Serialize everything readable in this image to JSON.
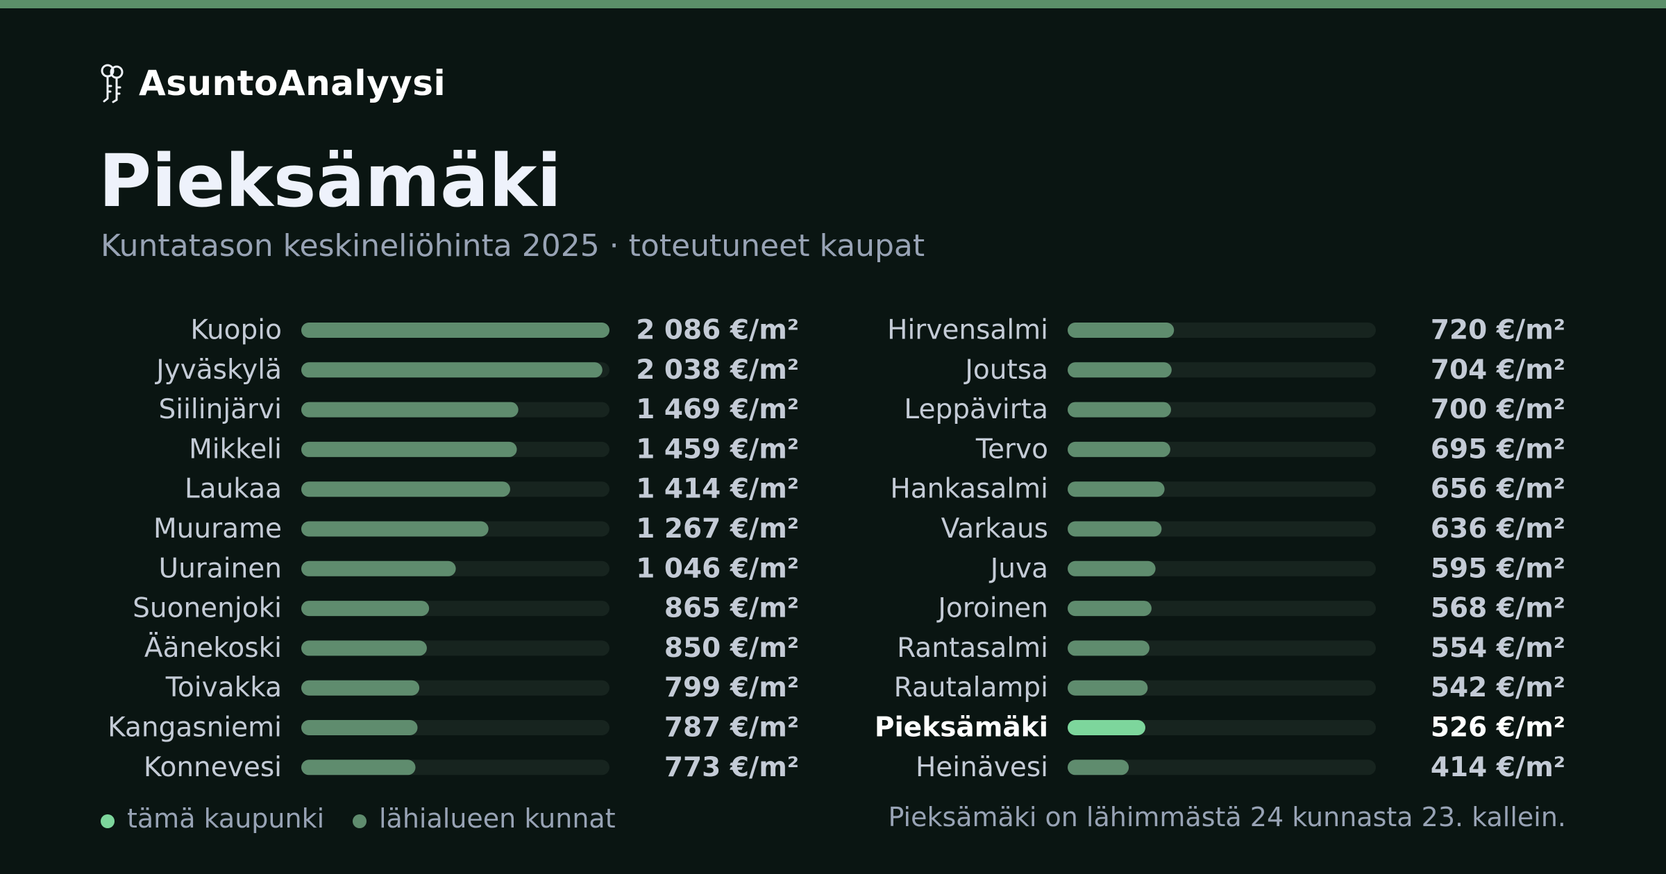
{
  "brand": {
    "name": "AsuntoAnalyysi",
    "icon": "keys-icon"
  },
  "page": {
    "title": "Pieksämäki",
    "subtitle": "Kuntatason keskineliöhinta 2025 · toteutuneet kaupat",
    "footer_note": "Pieksämäki on lähimmästä 24 kunnasta 23. kallein."
  },
  "colors": {
    "background": "#0a1512",
    "accent_bar": "#5b8f69",
    "bar_default": "#5f8c6e",
    "bar_highlight": "#7dd69c",
    "bar_track": "#17241f",
    "label_default": "#c4cbd6",
    "value_default": "#c4cbd6",
    "label_highlight": "#ffffff"
  },
  "chart_data": {
    "type": "bar",
    "orientation": "horizontal",
    "unit": "€/m²",
    "xlim": [
      0,
      2086
    ],
    "grid": false,
    "highlight": "Pieksämäki",
    "legend": {
      "placement": "bottom-left",
      "entries": [
        {
          "label": "tämä kaupunki",
          "color": "#7dd69c"
        },
        {
          "label": "lähialueen kunnat",
          "color": "#5f8c6e"
        }
      ]
    },
    "categories": [
      "Kuopio",
      "Jyväskylä",
      "Siilinjärvi",
      "Mikkeli",
      "Laukaa",
      "Muurame",
      "Uurainen",
      "Suonenjoki",
      "Äänekoski",
      "Toivakka",
      "Kangasniemi",
      "Konnevesi",
      "Hirvensalmi",
      "Joutsa",
      "Leppävirta",
      "Tervo",
      "Hankasalmi",
      "Varkaus",
      "Juva",
      "Joroinen",
      "Rantasalmi",
      "Rautalampi",
      "Pieksämäki",
      "Heinävesi"
    ],
    "values": [
      2086,
      2038,
      1469,
      1459,
      1414,
      1267,
      1046,
      865,
      850,
      799,
      787,
      773,
      720,
      704,
      700,
      695,
      656,
      636,
      595,
      568,
      554,
      542,
      526,
      414
    ],
    "value_labels": [
      "2 086 €/m²",
      "2 038 €/m²",
      "1 469 €/m²",
      "1 459 €/m²",
      "1 414 €/m²",
      "1 267 €/m²",
      "1 046 €/m²",
      "865 €/m²",
      "850 €/m²",
      "799 €/m²",
      "787 €/m²",
      "773 €/m²",
      "720 €/m²",
      "704 €/m²",
      "700 €/m²",
      "695 €/m²",
      "656 €/m²",
      "636 €/m²",
      "595 €/m²",
      "568 €/m²",
      "554 €/m²",
      "542 €/m²",
      "526 €/m²",
      "414 €/m²"
    ]
  }
}
